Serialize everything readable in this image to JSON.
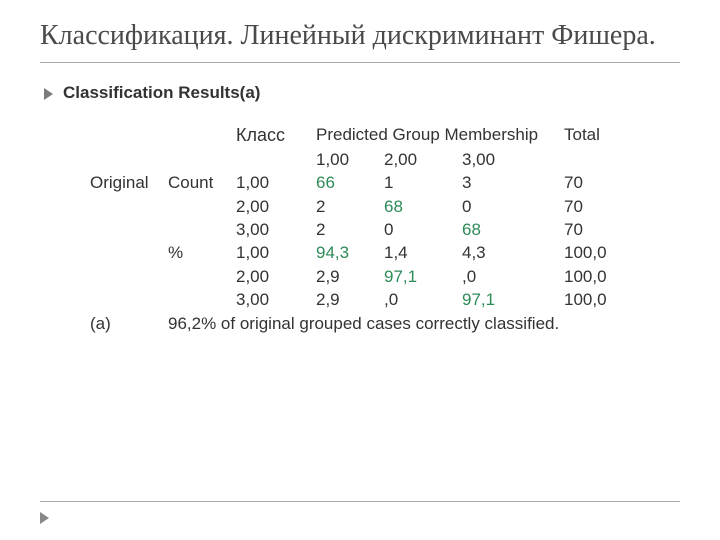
{
  "title": "Классификация. Линейный дискриминант Фишера.",
  "subhead": "Classification Results(a)",
  "table": {
    "col_klass": "Класс",
    "col_pgm": "Predicted Group Membership",
    "col_total": "Total",
    "pgm_sub": [
      "1,00",
      "2,00",
      "3,00"
    ],
    "group1_label": "Original",
    "stub_count": "Count",
    "stub_pct": "%",
    "rows_count": [
      {
        "klass": "1,00",
        "c1": "66",
        "c2": "1",
        "c3": "3",
        "total": "70",
        "diag": 0
      },
      {
        "klass": "2,00",
        "c1": "2",
        "c2": "68",
        "c3": "0",
        "total": "70",
        "diag": 1
      },
      {
        "klass": "3,00",
        "c1": "2",
        "c2": "0",
        "c3": "68",
        "total": "70",
        "diag": 2
      }
    ],
    "rows_pct": [
      {
        "klass": "1,00",
        "c1": "94,3",
        "c2": "1,4",
        "c3": "4,3",
        "total": "100,0",
        "diag": 0
      },
      {
        "klass": "2,00",
        "c1": "2,9",
        "c2": "97,1",
        "c3": ",0",
        "total": "100,0",
        "diag": 1
      },
      {
        "klass": "3,00",
        "c1": "2,9",
        "c2": ",0",
        "c3": "97,1",
        "total": "100,0",
        "diag": 2
      }
    ],
    "footnote_label": "(a)",
    "footnote_text": "96,2% of original grouped cases correctly classified."
  },
  "colors": {
    "diag": "#2e8b57",
    "text": "#333333",
    "rule": "#aaaaaa"
  }
}
